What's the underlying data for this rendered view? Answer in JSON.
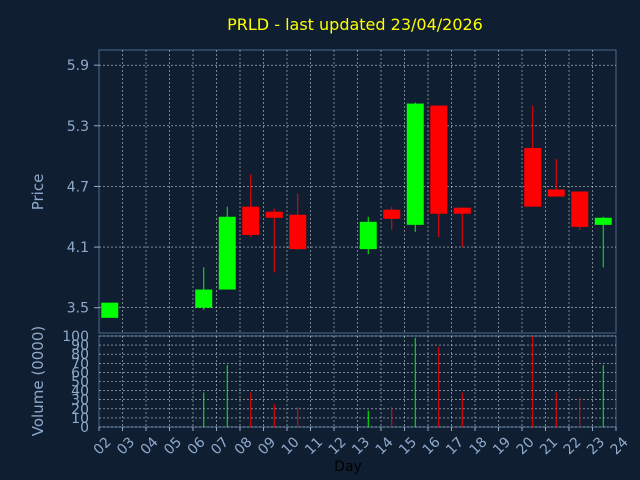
{
  "chart_data": {
    "type": "candlestick",
    "title": "PRLD - last updated 23/04/2026",
    "xlabel": "Day",
    "price_ylabel": "Price",
    "volume_ylabel": "Volume (0000)",
    "x_tick_labels": [
      "02",
      "03",
      "04",
      "05",
      "06",
      "07",
      "08",
      "09",
      "10",
      "11",
      "12",
      "13",
      "14",
      "15",
      "16",
      "17",
      "18",
      "19",
      "20",
      "21",
      "22",
      "23",
      "24"
    ],
    "price_ticks": [
      "5.9",
      "5.3",
      "4.7",
      "4.1",
      "3.5"
    ],
    "price_ylim": [
      3.25,
      6.05
    ],
    "volume_ticks": [
      "100",
      "90",
      "80",
      "70",
      "60",
      "50",
      "40",
      "30",
      "20",
      "10",
      "0"
    ],
    "volume_ylim": [
      0,
      100
    ],
    "grid": true,
    "colors": {
      "background": "#0f1f31",
      "title": "#ffff00",
      "axis_text": "#8faacc",
      "up": "#00ff00",
      "down": "#ff0000",
      "grid": "#ffffff"
    },
    "candles": [
      {
        "day": "02",
        "open": 3.4,
        "high": 3.55,
        "low": 3.4,
        "close": 3.55,
        "volume": 0
      },
      {
        "day": "06",
        "open": 3.5,
        "high": 3.9,
        "low": 3.48,
        "close": 3.68,
        "volume": 38
      },
      {
        "day": "07",
        "open": 3.68,
        "high": 4.5,
        "low": 3.68,
        "close": 4.4,
        "volume": 68
      },
      {
        "day": "08",
        "open": 4.5,
        "high": 4.82,
        "low": 4.2,
        "close": 4.22,
        "volume": 38
      },
      {
        "day": "09",
        "open": 4.45,
        "high": 4.48,
        "low": 3.85,
        "close": 4.39,
        "volume": 25
      },
      {
        "day": "10",
        "open": 4.42,
        "high": 4.63,
        "low": 4.07,
        "close": 4.08,
        "volume": 22
      },
      {
        "day": "13",
        "open": 4.08,
        "high": 4.4,
        "low": 4.03,
        "close": 4.35,
        "volume": 18
      },
      {
        "day": "14",
        "open": 4.47,
        "high": 4.5,
        "low": 4.27,
        "close": 4.38,
        "volume": 22
      },
      {
        "day": "15",
        "open": 4.32,
        "high": 5.53,
        "low": 4.25,
        "close": 5.52,
        "volume": 98
      },
      {
        "day": "16",
        "open": 5.5,
        "high": 5.5,
        "low": 4.2,
        "close": 4.43,
        "volume": 88
      },
      {
        "day": "17",
        "open": 4.49,
        "high": 4.49,
        "low": 4.1,
        "close": 4.43,
        "volume": 38
      },
      {
        "day": "20",
        "open": 5.08,
        "high": 5.5,
        "low": 4.5,
        "close": 4.5,
        "volume": 100
      },
      {
        "day": "21",
        "open": 4.67,
        "high": 4.97,
        "low": 4.6,
        "close": 4.6,
        "volume": 38
      },
      {
        "day": "22",
        "open": 4.65,
        "high": 4.65,
        "low": 4.27,
        "close": 4.3,
        "volume": 32
      },
      {
        "day": "23",
        "open": 4.32,
        "high": 4.4,
        "low": 3.9,
        "close": 4.39,
        "volume": 68
      }
    ]
  }
}
